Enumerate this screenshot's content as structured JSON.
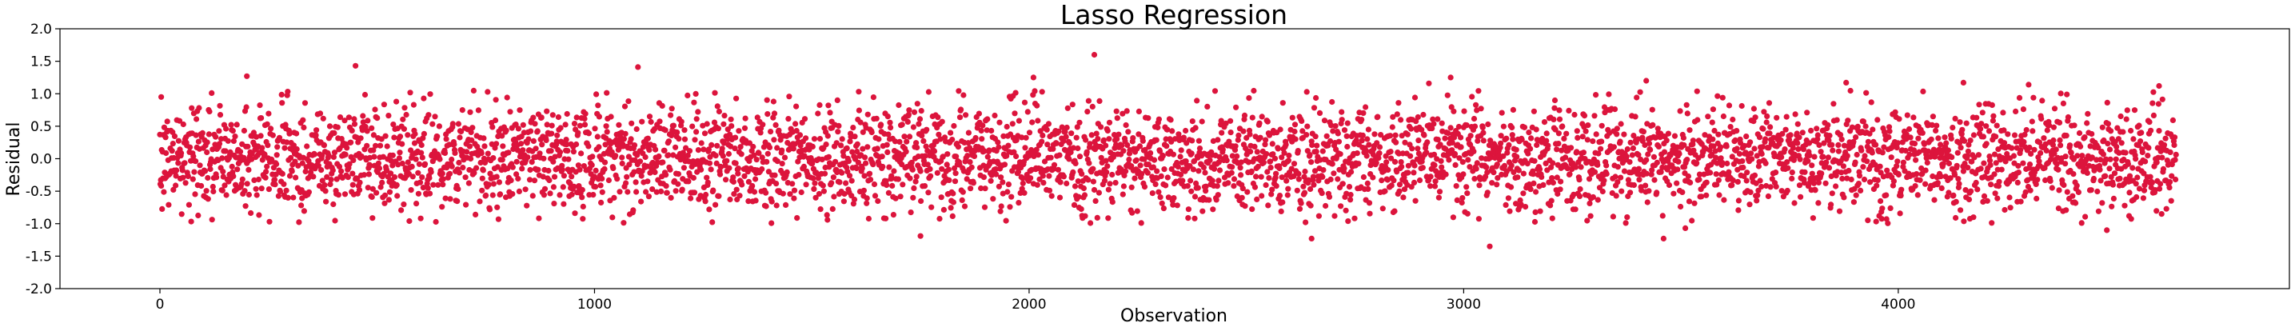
{
  "chart_data": {
    "type": "scatter",
    "title": "Lasso Regression",
    "xlabel": "Observation",
    "ylabel": "Residual",
    "xlim": [
      -230,
      4900
    ],
    "ylim": [
      -2.0,
      2.0
    ],
    "x_ticks": [
      0,
      1000,
      2000,
      3000,
      4000
    ],
    "y_ticks": [
      -2.0,
      -1.5,
      -1.0,
      -0.5,
      0.0,
      0.5,
      1.0,
      1.5,
      2.0
    ],
    "x_tick_labels": [
      "0",
      "1000",
      "2000",
      "3000",
      "4000"
    ],
    "y_tick_labels": [
      "-2.0",
      "-1.5",
      "-1.0",
      "-0.5",
      "0.0",
      "0.5",
      "1.0",
      "1.5",
      "2.0"
    ],
    "grid": false,
    "legend": "none",
    "marker_color": "#dc143c",
    "series": [
      {
        "n_points": 4640,
        "x_range": [
          0,
          4639
        ],
        "residual_sd": 0.4,
        "x": [
          3,
          200,
          450,
          1100,
          1750,
          2010,
          2150,
          2650,
          2920,
          2970,
          3060,
          3420,
          3460,
          3510,
          3880,
          4150,
          4300,
          4480,
          4600
        ],
        "y": [
          0.95,
          1.27,
          1.43,
          1.41,
          -1.19,
          1.25,
          1.6,
          -1.23,
          1.16,
          1.25,
          -1.35,
          1.2,
          -1.23,
          -1.07,
          1.17,
          1.17,
          1.14,
          -1.1,
          1.12
        ]
      }
    ]
  }
}
